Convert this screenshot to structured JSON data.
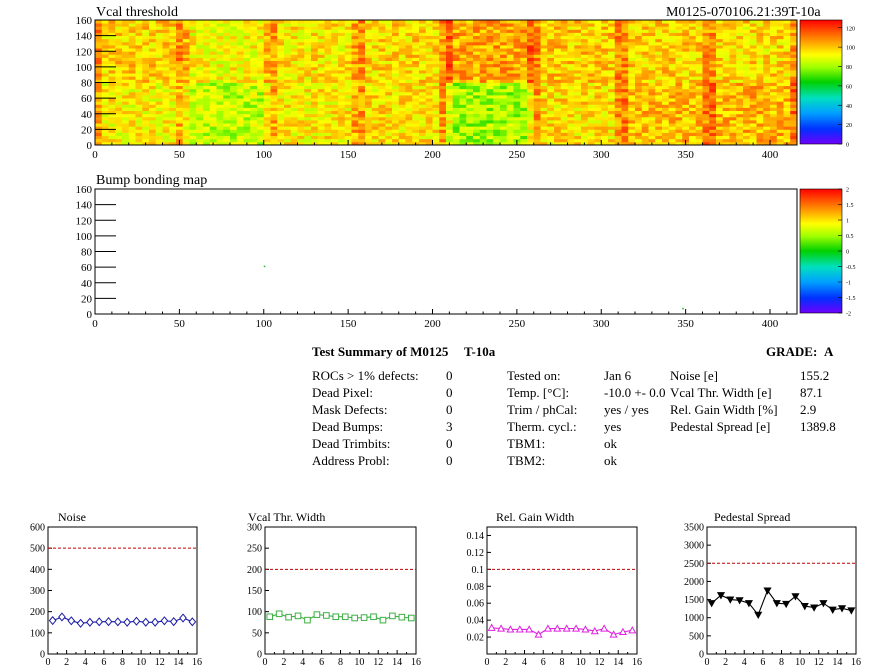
{
  "header": {
    "module_id": "M0125-070106.21:39T-10a"
  },
  "maps": [
    {
      "title": "Vcal threshold",
      "x_ticks": [
        "0",
        "50",
        "100",
        "150",
        "200",
        "250",
        "300",
        "350",
        "400"
      ],
      "y_ticks": [
        "0",
        "20",
        "40",
        "60",
        "80",
        "100",
        "120",
        "140",
        "160"
      ],
      "palette_ticks": [
        "0",
        "20",
        "40",
        "60",
        "80",
        "100",
        "120"
      ]
    },
    {
      "title": "Bump bonding map",
      "x_ticks": [
        "0",
        "50",
        "100",
        "150",
        "200",
        "250",
        "300",
        "350",
        "400"
      ],
      "y_ticks": [
        "0",
        "20",
        "40",
        "60",
        "80",
        "100",
        "120",
        "140",
        "160"
      ],
      "palette_ticks": [
        "-2",
        "-1.5",
        "-1",
        "-0.5",
        "0",
        "0.5",
        "1",
        "1.5",
        "2"
      ]
    }
  ],
  "summary": {
    "title": "Test Summary of M0125",
    "test": "T-10a",
    "grade_label": "GRADE:",
    "grade": "A",
    "defects": [
      {
        "label": "ROCs > 1% defects:",
        "value": "0"
      },
      {
        "label": "Dead Pixel:",
        "value": "0"
      },
      {
        "label": "Mask Defects:",
        "value": "0"
      },
      {
        "label": "Dead Bumps:",
        "value": "3"
      },
      {
        "label": "Dead Trimbits:",
        "value": "0"
      },
      {
        "label": "Address Probl:",
        "value": "0"
      }
    ],
    "conditions": [
      {
        "label": "Tested on:",
        "value": "Jan 6"
      },
      {
        "label": "Temp. [°C]:",
        "value": "-10.0 +- 0.0"
      },
      {
        "label": "Trim / phCal:",
        "value": "yes / yes"
      },
      {
        "label": "Therm. cycl.:",
        "value": "yes"
      },
      {
        "label": "TBM1:",
        "value": "ok"
      },
      {
        "label": "TBM2:",
        "value": "ok"
      }
    ],
    "results": [
      {
        "label": "Noise [e]",
        "value": "155.2"
      },
      {
        "label": "Vcal Thr. Width [e]",
        "value": "87.1"
      },
      {
        "label": "Rel. Gain Width [%]",
        "value": "2.9"
      },
      {
        "label": "Pedestal Spread [e]",
        "value": "1389.8"
      }
    ]
  },
  "chart_data": [
    {
      "type": "heatmap",
      "title": "Vcal threshold",
      "xlim": [
        0,
        416
      ],
      "ylim": [
        0,
        160
      ],
      "zlim": [
        0,
        128
      ],
      "roc_grid": {
        "columns": 8,
        "rows": 2,
        "roc_width": 52,
        "roc_height": 80
      },
      "roc_mean_values": [
        [
          98,
          92,
          95,
          97,
          104,
          99,
          98,
          97
        ],
        [
          93,
          84,
          94,
          96,
          80,
          96,
          100,
          102
        ]
      ],
      "palette_ticks": [
        0,
        20,
        40,
        60,
        80,
        100,
        120
      ]
    },
    {
      "type": "heatmap",
      "title": "Bump bonding map",
      "xlim": [
        0,
        416
      ],
      "ylim": [
        0,
        160
      ],
      "zlim": [
        -2,
        2
      ],
      "palette_ticks": [
        -2,
        -1.5,
        -1,
        -0.5,
        0,
        0.5,
        1,
        1.5,
        2
      ]
    },
    {
      "type": "line",
      "title": "Noise",
      "x": [
        0,
        1,
        2,
        3,
        4,
        5,
        6,
        7,
        8,
        9,
        10,
        11,
        12,
        13,
        14,
        15
      ],
      "values": [
        158,
        175,
        157,
        145,
        150,
        152,
        153,
        152,
        150,
        155,
        150,
        150,
        157,
        153,
        170,
        152
      ],
      "xlim": [
        0,
        16
      ],
      "ylim": [
        0,
        600
      ],
      "cut": 500,
      "x_ticks": [
        0,
        2,
        4,
        6,
        8,
        10,
        12,
        14,
        16
      ],
      "y_ticks": [
        0,
        100,
        200,
        300,
        400,
        500,
        600
      ],
      "color": "#1a1aa6",
      "marker": "diamond"
    },
    {
      "type": "line",
      "title": "Vcal Thr. Width",
      "x": [
        0,
        1,
        2,
        3,
        4,
        5,
        6,
        7,
        8,
        9,
        10,
        11,
        12,
        13,
        14,
        15
      ],
      "values": [
        88,
        95,
        87,
        90,
        80,
        93,
        91,
        88,
        88,
        85,
        86,
        88,
        80,
        90,
        87,
        85
      ],
      "xlim": [
        0,
        16
      ],
      "ylim": [
        0,
        300
      ],
      "cut": 200,
      "x_ticks": [
        0,
        2,
        4,
        6,
        8,
        10,
        12,
        14,
        16
      ],
      "y_ticks": [
        0,
        50,
        100,
        150,
        200,
        250,
        300
      ],
      "color": "#3cb043",
      "marker": "square"
    },
    {
      "type": "line",
      "title": "Rel. Gain Width",
      "x": [
        0,
        1,
        2,
        3,
        4,
        5,
        6,
        7,
        8,
        9,
        10,
        11,
        12,
        13,
        14,
        15
      ],
      "values": [
        0.031,
        0.03,
        0.029,
        0.029,
        0.029,
        0.023,
        0.03,
        0.03,
        0.03,
        0.03,
        0.029,
        0.027,
        0.03,
        0.023,
        0.026,
        0.028
      ],
      "xlim": [
        0,
        16
      ],
      "ylim": [
        0,
        0.15
      ],
      "cut": 0.1,
      "x_ticks": [
        0,
        2,
        4,
        6,
        8,
        10,
        12,
        14,
        16
      ],
      "y_ticks": [
        0.02,
        0.04,
        0.06,
        0.08,
        0.1,
        0.12,
        0.14
      ],
      "color": "#e020e0",
      "marker": "triangle"
    },
    {
      "type": "line",
      "title": "Pedestal Spread",
      "x": [
        0,
        1,
        2,
        3,
        4,
        5,
        6,
        7,
        8,
        9,
        10,
        11,
        12,
        13,
        14,
        15
      ],
      "values": [
        1400,
        1620,
        1500,
        1480,
        1400,
        1080,
        1750,
        1400,
        1380,
        1590,
        1320,
        1280,
        1400,
        1220,
        1260,
        1200
      ],
      "xlim": [
        0,
        16
      ],
      "ylim": [
        0,
        3500
      ],
      "cut": 2500,
      "x_ticks": [
        0,
        2,
        4,
        6,
        8,
        10,
        12,
        14,
        16
      ],
      "y_ticks": [
        0,
        500,
        1000,
        1500,
        2000,
        2500,
        3000,
        3500
      ],
      "color": "#000000",
      "marker": "triangle-down"
    }
  ]
}
